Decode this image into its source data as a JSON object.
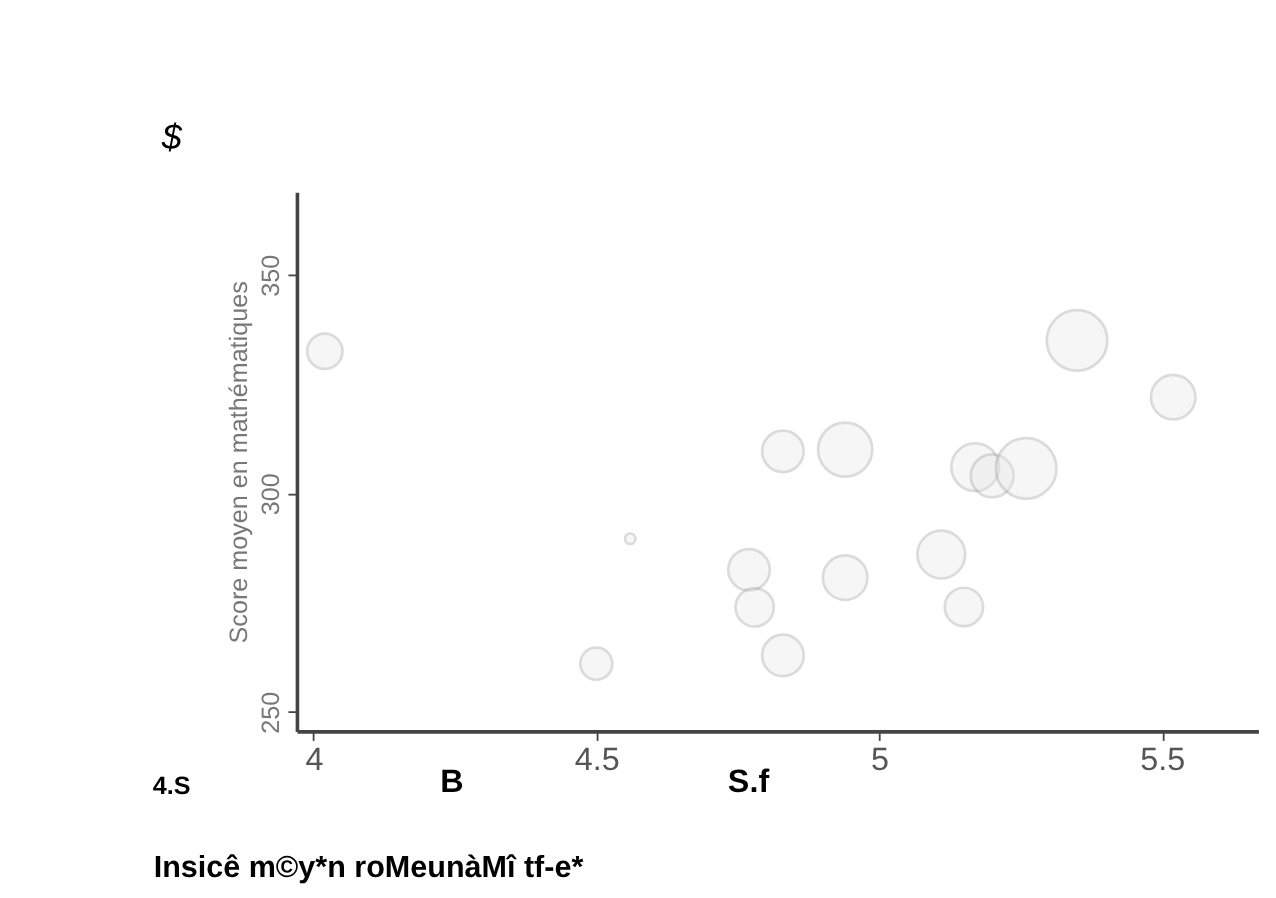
{
  "chart_data": {
    "type": "bubble",
    "xlabel": "Insicê m©y*n roMeunàMî tf-e*",
    "ylabel": "Score moyen en mathématiques",
    "annotations": [
      "$",
      "4.S",
      "B",
      "S.f"
    ],
    "x": [
      4.02,
      4.5,
      4.56,
      4.77,
      4.78,
      4.83,
      4.83,
      4.94,
      4.94,
      5.11,
      5.15,
      5.17,
      5.2,
      5.26,
      5.35,
      5.52
    ],
    "values": [
      332.5,
      261,
      289.6,
      282.5,
      273.9,
      262.9,
      309.6,
      310,
      280.7,
      286,
      274,
      306,
      304,
      305.7,
      335,
      322
    ],
    "sizes": [
      0.34,
      0.28,
      0.03,
      0.47,
      0.4,
      0.47,
      0.47,
      0.8,
      0.54,
      0.62,
      0.4,
      0.62,
      0.5,
      1,
      1,
      0.54
    ],
    "color": "#9a9a9a",
    "xlim": [
      3.97,
      5.67
    ],
    "xticks": [
      4,
      4.5,
      5,
      5.5
    ],
    "ylim": [
      245.6,
      369
    ],
    "yticks": [
      250,
      300,
      350
    ],
    "grid": false,
    "legend": false
  }
}
